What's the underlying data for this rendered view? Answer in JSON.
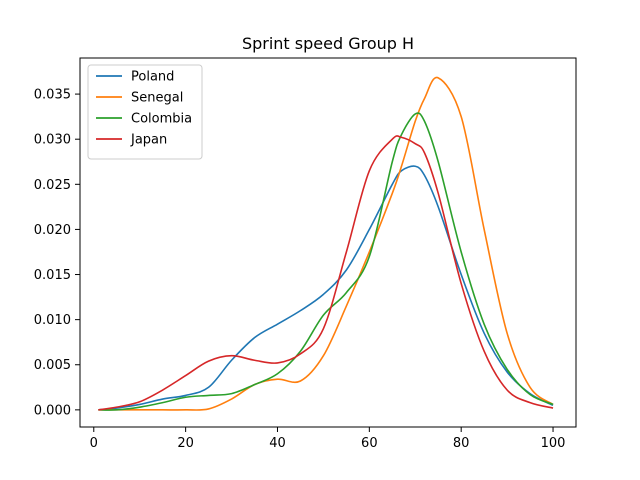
{
  "chart_data": {
    "type": "line",
    "title": "Sprint speed Group H",
    "xlabel": "",
    "ylabel": "",
    "xlim": [
      -3,
      105
    ],
    "ylim": [
      -0.0019,
      0.039
    ],
    "x_ticks": [
      0,
      20,
      40,
      60,
      80,
      100
    ],
    "y_ticks": [
      0.0,
      0.005,
      0.01,
      0.015,
      0.02,
      0.025,
      0.03,
      0.035
    ],
    "y_tick_labels": [
      "0.000",
      "0.005",
      "0.010",
      "0.015",
      "0.020",
      "0.025",
      "0.030",
      "0.035"
    ],
    "grid": false,
    "legend_position": "top-left",
    "x": [
      1,
      5,
      10,
      15,
      20,
      25,
      30,
      35,
      40,
      45,
      50,
      55,
      60,
      65,
      67,
      70,
      72,
      75,
      80,
      85,
      90,
      95,
      100
    ],
    "series": [
      {
        "name": "Poland",
        "color": "#1f77b4",
        "values": [
          0.0,
          0.0002,
          0.0006,
          0.0012,
          0.0016,
          0.0025,
          0.0055,
          0.008,
          0.0095,
          0.011,
          0.0128,
          0.0155,
          0.02,
          0.025,
          0.0265,
          0.027,
          0.026,
          0.0225,
          0.015,
          0.0085,
          0.0042,
          0.0018,
          0.0005
        ]
      },
      {
        "name": "Senegal",
        "color": "#ff7f0e",
        "values": [
          0.0,
          0.0,
          0.0,
          0.0,
          0.0,
          0.0001,
          0.0012,
          0.0028,
          0.0034,
          0.0032,
          0.006,
          0.0115,
          0.0175,
          0.024,
          0.027,
          0.032,
          0.0345,
          0.0368,
          0.0325,
          0.02,
          0.0085,
          0.0025,
          0.0006
        ]
      },
      {
        "name": "Colombia",
        "color": "#2ca02c",
        "values": [
          0.0,
          0.0,
          0.0003,
          0.0008,
          0.0014,
          0.0016,
          0.0018,
          0.0028,
          0.004,
          0.0065,
          0.0105,
          0.013,
          0.017,
          0.0275,
          0.0305,
          0.0328,
          0.032,
          0.0275,
          0.0175,
          0.0095,
          0.0045,
          0.0017,
          0.0006
        ]
      },
      {
        "name": "Japan",
        "color": "#d62728",
        "values": [
          0.0,
          0.0003,
          0.0009,
          0.0022,
          0.0038,
          0.0054,
          0.006,
          0.0055,
          0.0052,
          0.0062,
          0.009,
          0.0175,
          0.0265,
          0.03,
          0.0302,
          0.0295,
          0.0285,
          0.024,
          0.014,
          0.0065,
          0.0022,
          0.0008,
          0.0002
        ]
      }
    ]
  }
}
